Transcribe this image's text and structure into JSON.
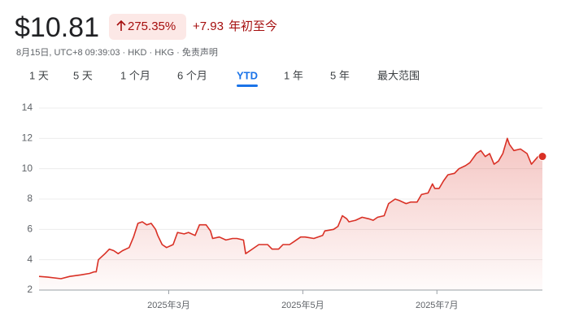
{
  "header": {
    "price": "$10.81",
    "change_percent": "275.35%",
    "change": "+7.93",
    "period": "年初至今",
    "meta": "8月15日, UTC+8 09:39:03 · HKD · HKG · 免责声明"
  },
  "tabs": [
    "1 天",
    "5 天",
    "1 个月",
    "6 个月",
    "YTD",
    "1 年",
    "5 年",
    "最大范围"
  ],
  "active_tab": 4,
  "chart_data": {
    "type": "line",
    "color": "#d93025",
    "grid": true,
    "x": [
      0,
      4,
      10,
      14,
      19,
      23,
      25,
      26,
      27,
      30,
      32,
      34,
      36,
      38,
      41,
      43,
      45,
      47,
      49,
      51,
      53,
      54,
      56,
      58,
      61,
      63,
      66,
      68,
      71,
      73,
      76,
      78,
      79,
      82,
      85,
      88,
      90,
      93,
      94,
      97,
      100,
      104,
      106,
      109,
      111,
      114,
      116,
      119,
      121,
      125,
      129,
      130,
      134,
      136,
      138,
      140,
      141,
      144,
      147,
      150,
      152,
      154,
      157,
      159,
      162,
      164,
      167,
      169,
      172,
      174,
      177,
      179,
      180,
      182,
      184,
      186,
      189,
      191,
      194,
      196,
      199,
      201,
      203,
      205,
      207,
      209,
      211,
      213,
      214,
      216,
      219,
      222,
      224,
      227,
      229
    ],
    "values": [
      2.9,
      2.85,
      2.75,
      2.9,
      3.0,
      3.1,
      3.2,
      3.2,
      4.0,
      4.4,
      4.7,
      4.6,
      4.4,
      4.6,
      4.8,
      5.5,
      6.4,
      6.5,
      6.3,
      6.4,
      6.0,
      5.6,
      5.0,
      4.8,
      5.0,
      5.8,
      5.7,
      5.8,
      5.6,
      6.3,
      6.3,
      5.9,
      5.4,
      5.5,
      5.3,
      5.4,
      5.4,
      5.3,
      4.4,
      4.7,
      5.0,
      5.0,
      4.7,
      4.7,
      5.0,
      5.0,
      5.2,
      5.5,
      5.5,
      5.4,
      5.6,
      5.9,
      6.0,
      6.2,
      6.9,
      6.7,
      6.5,
      6.6,
      6.8,
      6.7,
      6.6,
      6.8,
      6.9,
      7.7,
      8.0,
      7.9,
      7.7,
      7.8,
      7.8,
      8.3,
      8.4,
      9.0,
      8.7,
      8.7,
      9.2,
      9.6,
      9.7,
      10.0,
      10.2,
      10.4,
      11.0,
      11.2,
      10.8,
      11.0,
      10.3,
      10.5,
      11.0,
      12.0,
      11.6,
      11.2,
      11.3,
      11.0,
      10.3,
      10.8,
      10.81
    ],
    "xlim": [
      0,
      229
    ],
    "xticks": [
      {
        "value": 59,
        "label": "2025年3月"
      },
      {
        "value": 120,
        "label": "2025年5月"
      },
      {
        "value": 181,
        "label": "2025年7月"
      }
    ],
    "ylim": [
      2,
      14
    ],
    "yticks": [
      2,
      4,
      6,
      8,
      10,
      12,
      14
    ]
  }
}
